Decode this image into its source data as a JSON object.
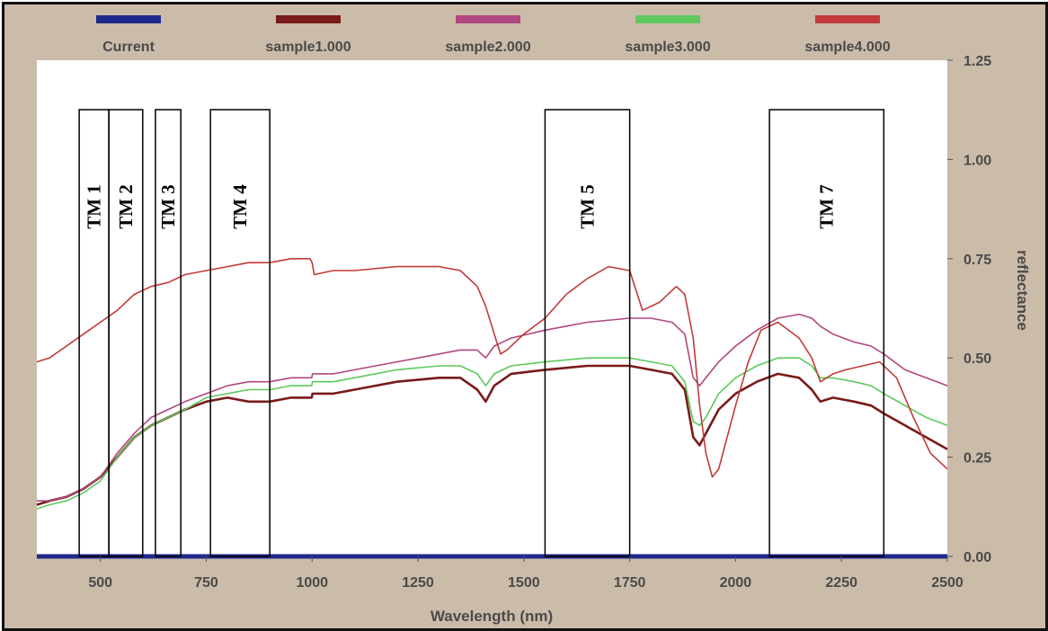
{
  "chart_data": {
    "type": "line",
    "title": "",
    "xlabel": "Wavelength (nm)",
    "ylabel": "reflectance",
    "xlim": [
      350,
      2500
    ],
    "ylim": [
      0,
      1.25
    ],
    "x_ticks": [
      500,
      750,
      1000,
      1250,
      1500,
      1750,
      2000,
      2250,
      2500
    ],
    "y_ticks": [
      0.0,
      0.25,
      0.5,
      0.75,
      1.0,
      1.25
    ],
    "y_tick_labels": [
      "0.00",
      "0.25",
      "0.50",
      "0.75",
      "1.00",
      "1.25"
    ],
    "background": "#ffffff",
    "frame_color": "#cbbba9",
    "legend_position": "top",
    "series": [
      {
        "name": "Current",
        "color": "#1f2a8c",
        "x": [
          350,
          2500
        ],
        "y": [
          0.0,
          0.0
        ]
      },
      {
        "name": "sample1.000",
        "color": "#7a1a1a",
        "x": [
          350,
          380,
          420,
          460,
          500,
          540,
          580,
          620,
          660,
          700,
          750,
          800,
          850,
          900,
          950,
          999,
          1001,
          1050,
          1100,
          1200,
          1300,
          1350,
          1390,
          1410,
          1430,
          1470,
          1550,
          1650,
          1750,
          1800,
          1850,
          1880,
          1900,
          1915,
          1930,
          1960,
          2000,
          2050,
          2100,
          2150,
          2180,
          2200,
          2230,
          2280,
          2320,
          2350,
          2400,
          2450,
          2500
        ],
        "y": [
          0.13,
          0.14,
          0.15,
          0.17,
          0.2,
          0.25,
          0.3,
          0.33,
          0.35,
          0.37,
          0.39,
          0.4,
          0.39,
          0.39,
          0.4,
          0.4,
          0.41,
          0.41,
          0.42,
          0.44,
          0.45,
          0.45,
          0.42,
          0.39,
          0.43,
          0.46,
          0.47,
          0.48,
          0.48,
          0.47,
          0.46,
          0.42,
          0.3,
          0.28,
          0.31,
          0.37,
          0.41,
          0.44,
          0.46,
          0.45,
          0.42,
          0.39,
          0.4,
          0.39,
          0.38,
          0.36,
          0.33,
          0.3,
          0.27
        ]
      },
      {
        "name": "sample2.000",
        "color": "#b0477e",
        "x": [
          350,
          380,
          420,
          460,
          500,
          540,
          580,
          620,
          660,
          700,
          750,
          800,
          850,
          900,
          950,
          999,
          1001,
          1050,
          1100,
          1200,
          1300,
          1350,
          1390,
          1410,
          1430,
          1470,
          1550,
          1650,
          1750,
          1800,
          1850,
          1880,
          1900,
          1915,
          1930,
          1960,
          2000,
          2050,
          2100,
          2150,
          2180,
          2200,
          2230,
          2280,
          2320,
          2350,
          2400,
          2450,
          2500
        ],
        "y": [
          0.14,
          0.14,
          0.15,
          0.17,
          0.2,
          0.26,
          0.31,
          0.35,
          0.37,
          0.39,
          0.41,
          0.43,
          0.44,
          0.44,
          0.45,
          0.45,
          0.46,
          0.46,
          0.47,
          0.49,
          0.51,
          0.52,
          0.52,
          0.5,
          0.53,
          0.55,
          0.57,
          0.59,
          0.6,
          0.6,
          0.59,
          0.56,
          0.45,
          0.43,
          0.45,
          0.49,
          0.53,
          0.57,
          0.6,
          0.61,
          0.6,
          0.58,
          0.56,
          0.54,
          0.53,
          0.51,
          0.47,
          0.45,
          0.43
        ]
      },
      {
        "name": "sample3.000",
        "color": "#5dc95d",
        "x": [
          350,
          380,
          420,
          460,
          500,
          540,
          580,
          620,
          660,
          700,
          750,
          800,
          850,
          900,
          950,
          999,
          1001,
          1050,
          1100,
          1200,
          1300,
          1350,
          1390,
          1410,
          1430,
          1470,
          1550,
          1650,
          1750,
          1800,
          1850,
          1880,
          1900,
          1915,
          1930,
          1960,
          2000,
          2050,
          2100,
          2150,
          2180,
          2200,
          2230,
          2280,
          2320,
          2350,
          2400,
          2450,
          2500
        ],
        "y": [
          0.12,
          0.13,
          0.14,
          0.16,
          0.19,
          0.25,
          0.3,
          0.33,
          0.35,
          0.37,
          0.4,
          0.41,
          0.42,
          0.42,
          0.43,
          0.43,
          0.44,
          0.44,
          0.45,
          0.47,
          0.48,
          0.48,
          0.46,
          0.43,
          0.46,
          0.48,
          0.49,
          0.5,
          0.5,
          0.49,
          0.48,
          0.44,
          0.34,
          0.33,
          0.35,
          0.41,
          0.45,
          0.48,
          0.5,
          0.5,
          0.48,
          0.45,
          0.45,
          0.44,
          0.43,
          0.41,
          0.38,
          0.35,
          0.33
        ]
      },
      {
        "name": "sample4.000",
        "color": "#c23a3a",
        "x": [
          350,
          380,
          420,
          460,
          500,
          540,
          580,
          620,
          660,
          700,
          750,
          800,
          850,
          900,
          950,
          995,
          1000,
          1005,
          1050,
          1100,
          1200,
          1250,
          1300,
          1350,
          1390,
          1410,
          1430,
          1445,
          1460,
          1500,
          1550,
          1600,
          1650,
          1700,
          1750,
          1780,
          1820,
          1860,
          1880,
          1900,
          1915,
          1930,
          1945,
          1960,
          1980,
          2000,
          2030,
          2060,
          2100,
          2150,
          2180,
          2200,
          2230,
          2260,
          2300,
          2340,
          2380,
          2420,
          2460,
          2500
        ],
        "y": [
          0.49,
          0.5,
          0.53,
          0.56,
          0.59,
          0.62,
          0.66,
          0.68,
          0.69,
          0.71,
          0.72,
          0.73,
          0.74,
          0.74,
          0.75,
          0.75,
          0.74,
          0.71,
          0.72,
          0.72,
          0.73,
          0.73,
          0.73,
          0.72,
          0.68,
          0.63,
          0.56,
          0.51,
          0.52,
          0.56,
          0.6,
          0.66,
          0.7,
          0.73,
          0.72,
          0.62,
          0.64,
          0.68,
          0.66,
          0.55,
          0.38,
          0.26,
          0.2,
          0.22,
          0.3,
          0.38,
          0.49,
          0.57,
          0.59,
          0.55,
          0.5,
          0.44,
          0.46,
          0.47,
          0.48,
          0.49,
          0.45,
          0.35,
          0.26,
          0.22
        ]
      }
    ],
    "band_boxes": [
      {
        "label": "TM 1",
        "x_start": 450,
        "x_end": 520
      },
      {
        "label": "TM 2",
        "x_start": 520,
        "x_end": 600
      },
      {
        "label": "TM 3",
        "x_start": 630,
        "x_end": 690
      },
      {
        "label": "TM 4",
        "x_start": 760,
        "x_end": 900
      },
      {
        "label": "TM 5",
        "x_start": 1550,
        "x_end": 1750
      },
      {
        "label": "TM 7",
        "x_start": 2080,
        "x_end": 2350
      }
    ]
  }
}
